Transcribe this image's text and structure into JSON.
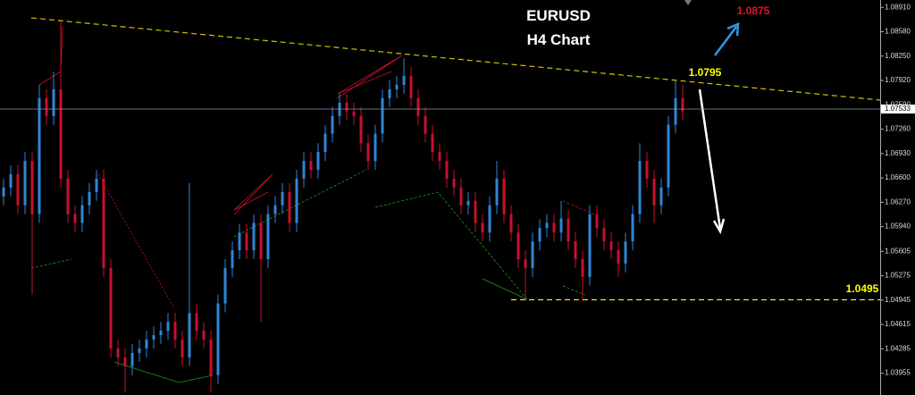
{
  "chart_data": {
    "type": "candlestick",
    "title": "EURUSD",
    "subtitle": "H4 Chart",
    "up_color": "#2f86d6",
    "down_color": "#c8102e",
    "ylim": [
      1.0366,
      1.0901
    ],
    "yticks": [
      {
        "value": 1.0891,
        "label": "1.08910"
      },
      {
        "value": 1.0858,
        "label": "1.08580"
      },
      {
        "value": 1.0825,
        "label": "1.08250"
      },
      {
        "value": 1.0792,
        "label": "1.07920"
      },
      {
        "value": 1.0759,
        "label": "1.07590"
      },
      {
        "value": 1.0726,
        "label": "1.07260"
      },
      {
        "value": 1.0693,
        "label": "1.06930"
      },
      {
        "value": 1.066,
        "label": "1.06600"
      },
      {
        "value": 1.0627,
        "label": "1.06270"
      },
      {
        "value": 1.0594,
        "label": "1.05940"
      },
      {
        "value": 1.05605,
        "label": "1.05605"
      },
      {
        "value": 1.05275,
        "label": "1.05275"
      },
      {
        "value": 1.04945,
        "label": "1.04945"
      },
      {
        "value": 1.04615,
        "label": "1.04615"
      },
      {
        "value": 1.04285,
        "label": "1.04285"
      },
      {
        "value": 1.03955,
        "label": "1.03955"
      }
    ],
    "current_price": {
      "value": 1.07533,
      "label": "1.07533"
    },
    "levels": [
      {
        "value": 1.0875,
        "color": "#e8102a"
      },
      {
        "value": 1.0795,
        "color": "#ffff00"
      },
      {
        "value": 1.0495,
        "color": "#ffff00"
      }
    ],
    "open": [
      1.0635,
      1.0647,
      1.0665,
      1.0623,
      1.0683,
      1.0611,
      1.0768,
      1.0744,
      1.078,
      1.0659,
      1.0611,
      1.0599,
      1.0623,
      1.0641,
      1.0659,
      1.0538,
      1.0429,
      1.0417,
      1.0405,
      1.0423,
      1.0429,
      1.0441,
      1.0447,
      1.0453,
      1.0465,
      1.0441,
      1.0417,
      1.0477,
      1.0453,
      1.0441,
      1.0393,
      1.049,
      1.0538,
      1.0562,
      1.0586,
      1.0562,
      1.0599,
      1.055,
      1.0611,
      1.0623,
      1.0641,
      1.0599,
      1.0659,
      1.0683,
      1.0671,
      1.0695,
      1.072,
      1.0744,
      1.0762,
      1.075,
      1.0744,
      1.0707,
      1.0683,
      1.072,
      1.0768,
      1.078,
      1.0786,
      1.0798,
      1.0768,
      1.0744,
      1.072,
      1.0695,
      1.0683,
      1.0659,
      1.0647,
      1.0623,
      1.0629,
      1.0599,
      1.0586,
      1.0623,
      1.0659,
      1.0611,
      1.0586,
      1.055,
      1.0538,
      1.0574,
      1.0592,
      1.0599,
      1.0586,
      1.0605,
      1.0574,
      1.055,
      1.0526,
      1.0611,
      1.0592,
      1.0574,
      1.0562,
      1.0544,
      1.0574,
      1.0611,
      1.0683,
      1.0659,
      1.0623,
      1.0647,
      1.0732,
      1.0768
    ],
    "high": [
      1.0659,
      1.0677,
      1.0677,
      1.0695,
      1.0695,
      1.0786,
      1.078,
      1.0804,
      1.0871,
      1.0671,
      1.0623,
      1.0635,
      1.0653,
      1.0671,
      1.0671,
      1.055,
      1.0441,
      1.0429,
      1.0435,
      1.0441,
      1.0453,
      1.0459,
      1.0465,
      1.0477,
      1.0477,
      1.0453,
      1.0653,
      1.0489,
      1.0465,
      1.0453,
      1.0502,
      1.055,
      1.0574,
      1.0598,
      1.0598,
      1.0611,
      1.0611,
      1.0623,
      1.0635,
      1.0653,
      1.0653,
      1.0671,
      1.0695,
      1.0695,
      1.0707,
      1.0732,
      1.0756,
      1.0774,
      1.0774,
      1.0762,
      1.0756,
      1.0719,
      1.0732,
      1.078,
      1.0792,
      1.0798,
      1.0822,
      1.081,
      1.078,
      1.0756,
      1.0732,
      1.0707,
      1.0695,
      1.0671,
      1.0659,
      1.0641,
      1.0641,
      1.0611,
      1.0635,
      1.0683,
      1.0671,
      1.0623,
      1.0598,
      1.0562,
      1.0586,
      1.0604,
      1.0611,
      1.0611,
      1.0629,
      1.0617,
      1.0586,
      1.0562,
      1.0623,
      1.0623,
      1.0604,
      1.0586,
      1.0574,
      1.0586,
      1.0623,
      1.0707,
      1.0695,
      1.0671,
      1.0659,
      1.0744,
      1.0792,
      1.0786
    ],
    "low": [
      1.0623,
      1.0635,
      1.0611,
      1.0611,
      1.0502,
      1.0599,
      1.0732,
      1.0732,
      1.0647,
      1.0599,
      1.0587,
      1.0587,
      1.0611,
      1.0629,
      1.0526,
      1.0417,
      1.0405,
      1.0369,
      1.0393,
      1.0411,
      1.0417,
      1.0429,
      1.0435,
      1.0441,
      1.0429,
      1.0405,
      1.0405,
      1.0441,
      1.0429,
      1.0369,
      1.0381,
      1.0478,
      1.0526,
      1.055,
      1.055,
      1.055,
      1.0465,
      1.0538,
      1.0599,
      1.0611,
      1.0587,
      1.0587,
      1.0647,
      1.0659,
      1.0659,
      1.0683,
      1.0708,
      1.0732,
      1.0738,
      1.0732,
      1.0695,
      1.0671,
      1.0671,
      1.0708,
      1.0756,
      1.0768,
      1.0774,
      1.0756,
      1.0732,
      1.0708,
      1.0683,
      1.0671,
      1.0647,
      1.0635,
      1.0611,
      1.0611,
      1.0587,
      1.0574,
      1.0574,
      1.0611,
      1.0599,
      1.0574,
      1.0538,
      1.0494,
      1.0526,
      1.0562,
      1.058,
      1.0574,
      1.0574,
      1.0562,
      1.0538,
      1.0494,
      1.0514,
      1.058,
      1.0562,
      1.055,
      1.0526,
      1.0532,
      1.0562,
      1.0599,
      1.0647,
      1.0599,
      1.0611,
      1.0635,
      1.072,
      1.0738
    ],
    "close": [
      1.0647,
      1.0665,
      1.0623,
      1.0683,
      1.0611,
      1.0768,
      1.0744,
      1.078,
      1.0659,
      1.0611,
      1.0599,
      1.0623,
      1.0641,
      1.0659,
      1.0538,
      1.0429,
      1.0417,
      1.0405,
      1.0423,
      1.0429,
      1.0441,
      1.0447,
      1.0453,
      1.0465,
      1.0441,
      1.0417,
      1.0477,
      1.0453,
      1.0441,
      1.0393,
      1.049,
      1.0538,
      1.0562,
      1.0586,
      1.0562,
      1.0599,
      1.055,
      1.0611,
      1.0623,
      1.0641,
      1.0599,
      1.0659,
      1.0683,
      1.0671,
      1.0695,
      1.072,
      1.0744,
      1.0762,
      1.075,
      1.0744,
      1.0707,
      1.0683,
      1.072,
      1.0768,
      1.078,
      1.0786,
      1.0798,
      1.0768,
      1.0744,
      1.072,
      1.0695,
      1.0683,
      1.0659,
      1.0647,
      1.0623,
      1.0629,
      1.0599,
      1.0586,
      1.0623,
      1.0659,
      1.0611,
      1.0586,
      1.055,
      1.0538,
      1.0574,
      1.0592,
      1.0599,
      1.0586,
      1.0605,
      1.0574,
      1.055,
      1.0526,
      1.0611,
      1.0592,
      1.0574,
      1.0562,
      1.0544,
      1.0574,
      1.0611,
      1.0683,
      1.0659,
      1.0623,
      1.0647,
      1.0732,
      1.0768,
      1.075
    ]
  }
}
